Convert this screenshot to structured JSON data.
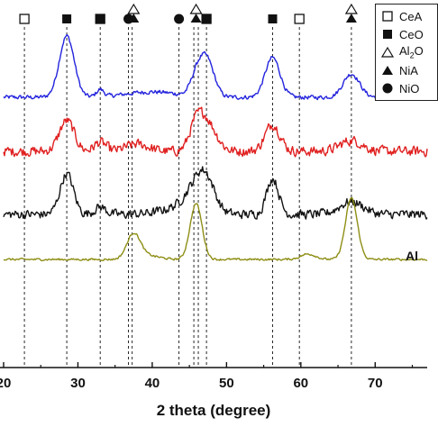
{
  "chart_data": {
    "type": "line",
    "title": "",
    "xlabel": "2 theta (degree)",
    "ylabel": "",
    "xlim": [
      20,
      77
    ],
    "xticks": [
      20,
      30,
      40,
      50,
      60,
      70
    ],
    "tick_labels": [
      "20",
      "30",
      "40",
      "50",
      "60",
      "70"
    ],
    "grid": false,
    "legend_position": "top-right",
    "legend": [
      {
        "symbol": "open-square",
        "label": "CeA"
      },
      {
        "symbol": "filled-square",
        "label": "CeO"
      },
      {
        "symbol": "open-triangle",
        "label": "Al2O"
      },
      {
        "symbol": "filled-triangle",
        "label": "NiA"
      },
      {
        "symbol": "filled-circle",
        "label": "NiO"
      }
    ],
    "reference_lines": [
      22.8,
      28.5,
      33.0,
      36.8,
      37.3,
      43.6,
      45.6,
      46.2,
      47.3,
      56.2,
      59.8,
      66.8
    ],
    "phase_markers": [
      {
        "x": 22.8,
        "symbol": "open-square"
      },
      {
        "x": 28.5,
        "symbol": "filled-square"
      },
      {
        "x": 33.0,
        "symbol": "open-square"
      },
      {
        "x": 33.0,
        "symbol": "filled-square"
      },
      {
        "x": 36.8,
        "symbol": "filled-circle"
      },
      {
        "x": 37.5,
        "symbol": "open-triangle"
      },
      {
        "x": 37.5,
        "symbol": "filled-triangle"
      },
      {
        "x": 43.6,
        "symbol": "filled-circle"
      },
      {
        "x": 45.9,
        "symbol": "open-triangle"
      },
      {
        "x": 45.9,
        "symbol": "filled-triangle"
      },
      {
        "x": 47.3,
        "symbol": "open-square"
      },
      {
        "x": 47.3,
        "symbol": "filled-square"
      },
      {
        "x": 56.2,
        "symbol": "filled-square"
      },
      {
        "x": 59.8,
        "symbol": "open-square"
      },
      {
        "x": 66.8,
        "symbol": "open-triangle"
      },
      {
        "x": 66.8,
        "symbol": "filled-triangle"
      }
    ],
    "series": [
      {
        "color": "#2323dd",
        "offset": 300,
        "noise": 3.2,
        "end_label": "",
        "peaks": [
          [
            28.5,
            1.0,
            68
          ],
          [
            33.0,
            0.5,
            8
          ],
          [
            47.3,
            1.0,
            42
          ],
          [
            45.9,
            0.8,
            18
          ],
          [
            56.2,
            1.0,
            44
          ],
          [
            66.8,
            1.1,
            26
          ],
          [
            40.0,
            3.5,
            6
          ]
        ]
      },
      {
        "color": "#e02020",
        "offset": 240,
        "noise": 7.5,
        "end_label": "",
        "peaks": [
          [
            28.5,
            1.0,
            34
          ],
          [
            33.0,
            0.8,
            10
          ],
          [
            47.3,
            1.3,
            32
          ],
          [
            45.9,
            0.9,
            22
          ],
          [
            56.2,
            1.0,
            30
          ],
          [
            66.8,
            1.5,
            12
          ],
          [
            38.0,
            1.5,
            8
          ]
        ]
      },
      {
        "color": "#141414",
        "offset": 170,
        "noise": 7.0,
        "end_label": "",
        "peaks": [
          [
            28.5,
            0.9,
            45
          ],
          [
            33.0,
            0.8,
            8
          ],
          [
            47.3,
            1.2,
            30
          ],
          [
            45.9,
            1.4,
            22
          ],
          [
            56.2,
            0.8,
            40
          ],
          [
            66.8,
            1.6,
            14
          ],
          [
            44.0,
            2.5,
            8
          ]
        ]
      },
      {
        "color": "#8e8e16",
        "offset": 120,
        "noise": 1.6,
        "end_label": "Al",
        "peaks": [
          [
            37.5,
            0.9,
            28
          ],
          [
            45.9,
            0.8,
            62
          ],
          [
            66.8,
            0.8,
            68
          ],
          [
            61.0,
            1.0,
            6
          ],
          [
            39.5,
            1.5,
            4
          ]
        ]
      }
    ]
  }
}
